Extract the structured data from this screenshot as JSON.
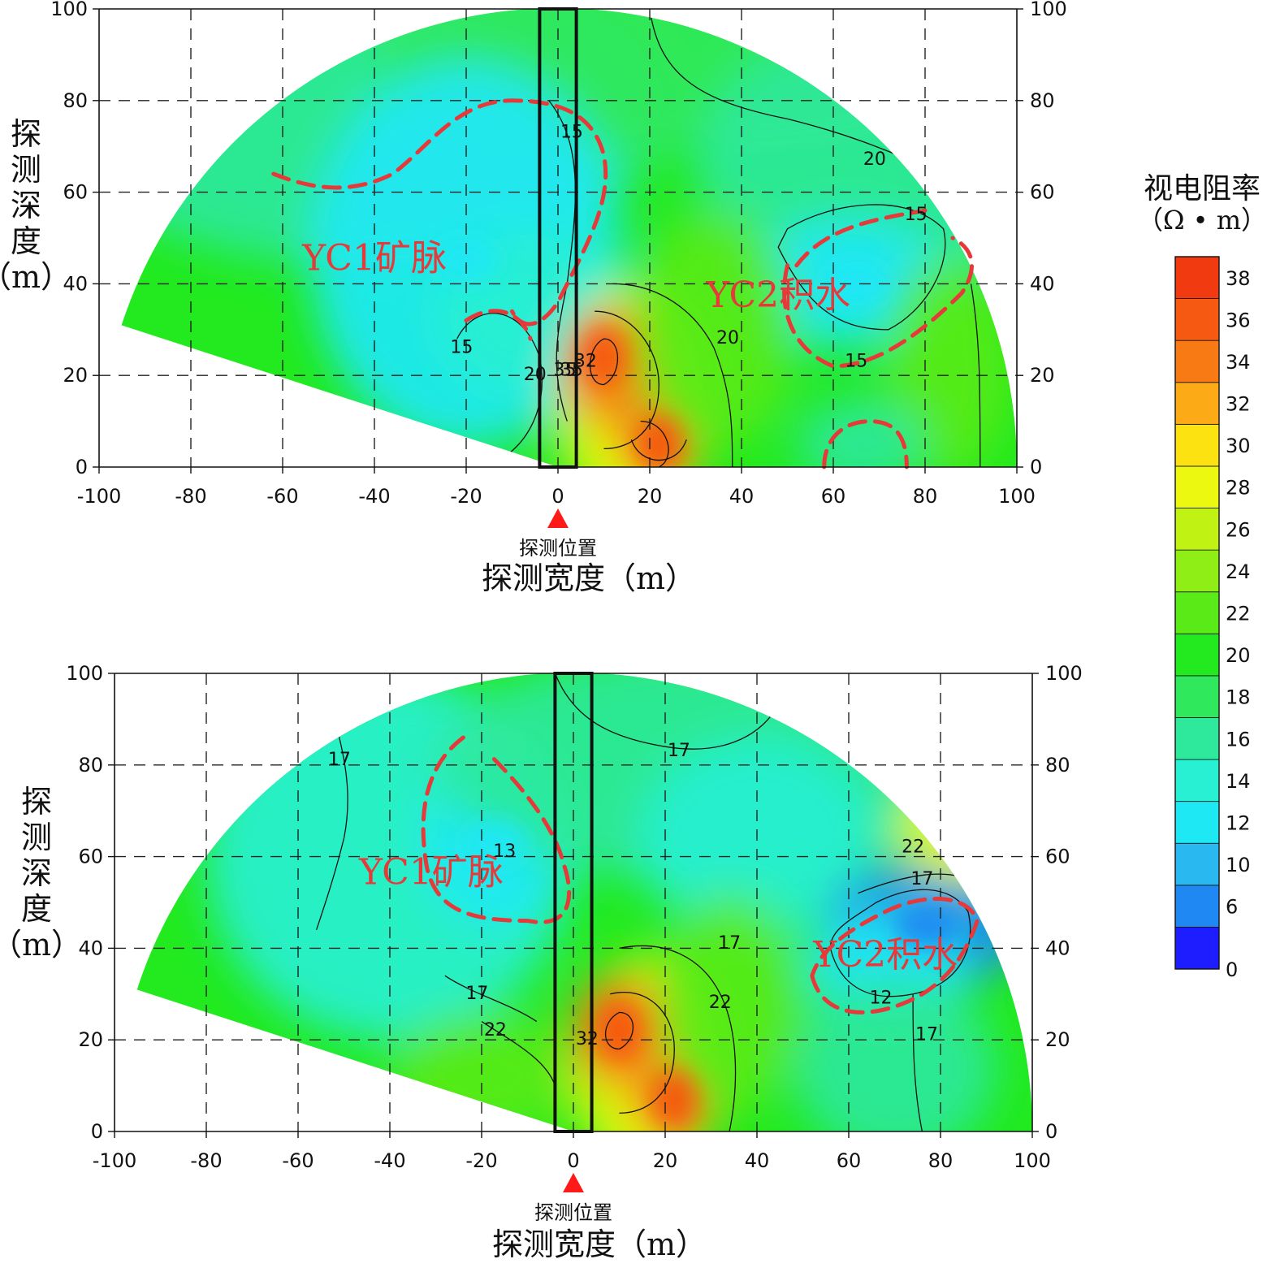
{
  "chart_data": [
    {
      "type": "heatmap",
      "chart_subtype": "fan-shaped resistivity contour section",
      "xlabel": "探测宽度（m）",
      "ylabel": "探测深度（m）",
      "xlim": [
        -100,
        100
      ],
      "ylim": [
        0,
        100
      ],
      "x_ticks": [
        "-100",
        "-80",
        "-60",
        "-40",
        "-20",
        "0",
        "20",
        "40",
        "60",
        "80",
        "100"
      ],
      "y_ticks": [
        "0",
        "20",
        "40",
        "60",
        "80",
        "100"
      ],
      "grid": "dashed",
      "probe_marker": "探测位置",
      "probe_x": 0,
      "probe_box_x": [
        -4,
        4
      ],
      "contour_labels": [
        {
          "text": "15",
          "x": 3,
          "y": 73
        },
        {
          "text": "20",
          "x": 69,
          "y": 67
        },
        {
          "text": "15",
          "x": 78,
          "y": 55
        },
        {
          "text": "20",
          "x": 37,
          "y": 28
        },
        {
          "text": "15",
          "x": 65,
          "y": 23
        },
        {
          "text": "15",
          "x": -21,
          "y": 26
        },
        {
          "text": "20",
          "x": -5,
          "y": 20
        },
        {
          "text": "35",
          "x": 1.5,
          "y": 21
        },
        {
          "text": "35",
          "x": 3,
          "y": 21
        },
        {
          "text": "32",
          "x": 6,
          "y": 23
        }
      ],
      "annotations": [
        {
          "text": "YC1矿脉",
          "x": -40,
          "y": 45,
          "encircled": true
        },
        {
          "text": "YC2积水",
          "x": 48,
          "y": 37,
          "encircled": true
        }
      ],
      "peaks": [
        {
          "x": 10,
          "y": 24,
          "value": 36
        },
        {
          "x": 22,
          "y": 5,
          "value": 36
        }
      ],
      "lows": [
        {
          "x": -20,
          "y": 45,
          "value": 12
        },
        {
          "x": 65,
          "y": 40,
          "value": 12
        }
      ]
    },
    {
      "type": "heatmap",
      "chart_subtype": "fan-shaped resistivity contour section",
      "xlabel": "探测宽度（m）",
      "ylabel": "探测深度（m）",
      "xlim": [
        -100,
        100
      ],
      "ylim": [
        0,
        100
      ],
      "x_ticks": [
        "-100",
        "-80",
        "-60",
        "-40",
        "-20",
        "0",
        "20",
        "40",
        "60",
        "80",
        "100"
      ],
      "y_ticks": [
        "0",
        "20",
        "40",
        "60",
        "80",
        "100"
      ],
      "grid": "dashed",
      "probe_marker": "探测位置",
      "probe_x": 0,
      "probe_box_x": [
        -4,
        4
      ],
      "contour_labels": [
        {
          "text": "17",
          "x": -51,
          "y": 81
        },
        {
          "text": "17",
          "x": 23,
          "y": 83
        },
        {
          "text": "13",
          "x": -15,
          "y": 61
        },
        {
          "text": "22",
          "x": 74,
          "y": 62
        },
        {
          "text": "17",
          "x": 76,
          "y": 55
        },
        {
          "text": "17",
          "x": 34,
          "y": 41
        },
        {
          "text": "22",
          "x": 32,
          "y": 28
        },
        {
          "text": "17",
          "x": -21,
          "y": 30
        },
        {
          "text": "22",
          "x": -17,
          "y": 22
        },
        {
          "text": "12",
          "x": 67,
          "y": 29
        },
        {
          "text": "17",
          "x": 77,
          "y": 21
        },
        {
          "text": "32",
          "x": 3,
          "y": 20
        }
      ],
      "annotations": [
        {
          "text": "YC1矿脉",
          "x": -31,
          "y": 56,
          "encircled": true
        },
        {
          "text": "YC2积水",
          "x": 68,
          "y": 38,
          "encircled": true
        }
      ],
      "peaks": [
        {
          "x": 10,
          "y": 22,
          "value": 36
        },
        {
          "x": 22,
          "y": 7,
          "value": 37
        }
      ],
      "lows": [
        {
          "x": -17,
          "y": 63,
          "value": 12
        },
        {
          "x": 77,
          "y": 45,
          "value": 7
        }
      ]
    }
  ],
  "colorbar": {
    "title_line1": "视电阻率",
    "title_line2": "（Ω • m）",
    "levels": [
      0,
      6,
      10,
      12,
      14,
      16,
      18,
      20,
      22,
      24,
      26,
      28,
      30,
      32,
      34,
      36,
      38,
      40
    ],
    "tick_labels": [
      "0",
      "6",
      "10",
      "12",
      "14",
      "16",
      "18",
      "20",
      "22",
      "24",
      "26",
      "28",
      "30",
      "32",
      "34",
      "36",
      "38"
    ],
    "colors": [
      "#1d1dff",
      "#1f88f2",
      "#2ab8f0",
      "#1fe8f5",
      "#28f0d2",
      "#2ee89c",
      "#2fe85c",
      "#22ea1f",
      "#59ea18",
      "#8eee16",
      "#c0f314",
      "#edf810",
      "#fde212",
      "#fcaa16",
      "#f87a14",
      "#f55912",
      "#f23a10"
    ]
  },
  "colors": {
    "annotation": "#e63a3a",
    "probe_marker": "#ff1a1a",
    "contour_line": "#111111",
    "grid": "#222222"
  }
}
